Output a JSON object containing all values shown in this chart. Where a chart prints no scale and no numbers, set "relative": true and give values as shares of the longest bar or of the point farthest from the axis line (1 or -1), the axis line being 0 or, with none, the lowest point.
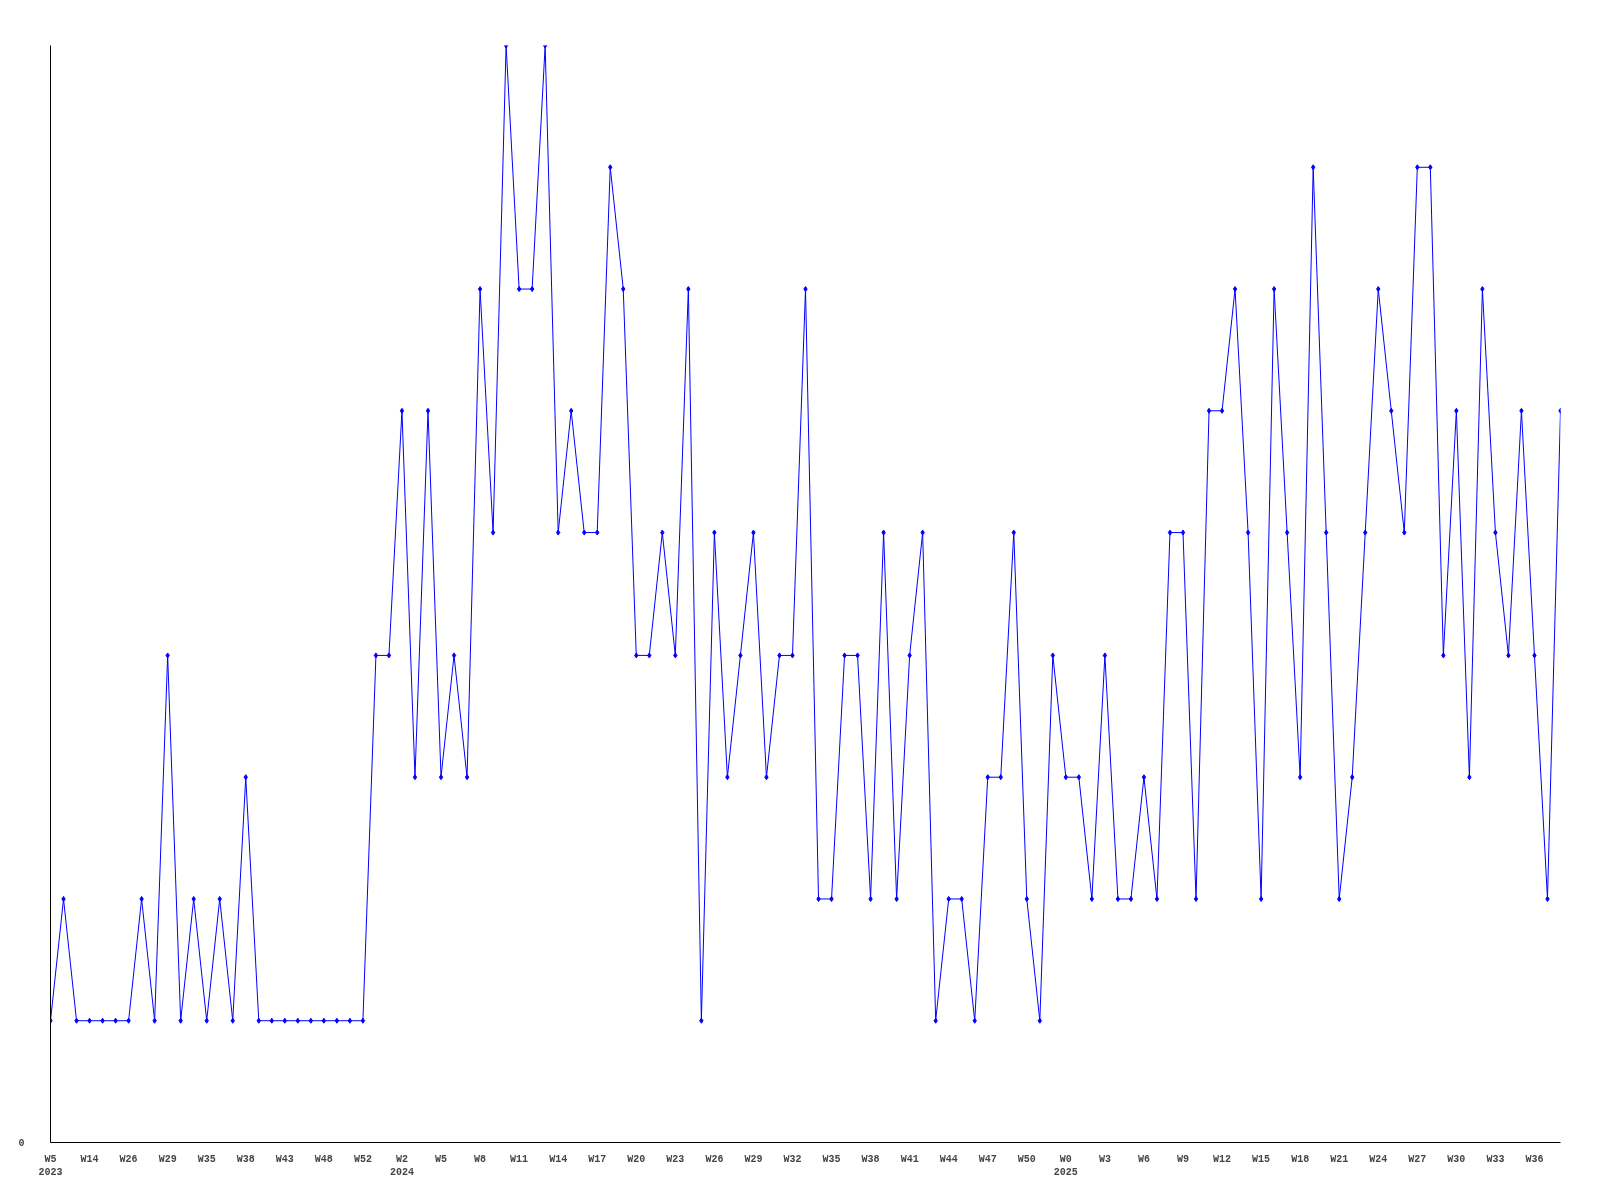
{
  "chart_data": {
    "type": "line",
    "relative": true,
    "color": "#0000ff",
    "marker": "diamond",
    "line_style": "solid",
    "grid": false,
    "annotations": [
      "0"
    ],
    "categories": [
      "W5\n2023",
      null,
      null,
      "W14",
      null,
      null,
      "W26",
      null,
      null,
      "W29",
      null,
      null,
      "W35",
      null,
      null,
      "W38",
      null,
      null,
      "W43",
      null,
      null,
      "W48",
      null,
      null,
      "W52",
      null,
      null,
      "W2\n2024",
      null,
      null,
      "W5",
      null,
      null,
      "W8",
      null,
      null,
      "W11",
      null,
      null,
      "W14",
      null,
      null,
      "W17",
      null,
      null,
      "W20",
      null,
      null,
      "W23",
      null,
      null,
      "W26",
      null,
      null,
      "W29",
      null,
      null,
      "W32",
      null,
      null,
      "W35",
      null,
      null,
      "W38",
      null,
      null,
      "W41",
      null,
      null,
      "W44",
      null,
      null,
      "W47",
      null,
      null,
      "W50",
      null,
      null,
      "W0\n2025",
      null,
      null,
      "W3",
      null,
      null,
      "W6",
      null,
      null,
      "W9",
      null,
      null,
      "W12",
      null,
      null,
      "W15",
      null,
      null,
      "W18",
      null,
      null,
      "W21",
      null,
      null,
      "W24",
      null,
      null,
      "W27",
      null,
      null,
      "W30",
      null,
      null,
      "W33",
      null,
      null,
      "W36",
      null,
      null
    ],
    "values": [
      0.111,
      0.222,
      0.111,
      0.111,
      0.111,
      0.111,
      0.111,
      0.222,
      0.111,
      0.444,
      0.111,
      0.222,
      0.111,
      0.222,
      0.111,
      0.333,
      0.111,
      0.111,
      0.111,
      0.111,
      0.111,
      0.111,
      0.111,
      0.111,
      0.111,
      0.444,
      0.444,
      0.667,
      0.333,
      0.667,
      0.333,
      0.444,
      0.333,
      0.778,
      0.556,
      1,
      0.778,
      0.778,
      1,
      0.556,
      0.667,
      0.556,
      0.556,
      0.889,
      0.778,
      0.444,
      0.444,
      0.556,
      0.444,
      0.778,
      0.111,
      0.556,
      0.333,
      0.444,
      0.556,
      0.333,
      0.444,
      0.444,
      0.778,
      0.222,
      0.222,
      0.444,
      0.444,
      0.222,
      0.556,
      0.222,
      0.444,
      0.556,
      0.111,
      0.222,
      0.222,
      0.111,
      0.333,
      0.333,
      0.556,
      0.222,
      0.111,
      0.444,
      0.333,
      0.333,
      0.222,
      0.444,
      0.222,
      0.222,
      0.333,
      0.222,
      0.556,
      0.556,
      0.222,
      0.667,
      0.667,
      0.778,
      0.556,
      0.222,
      0.778,
      0.556,
      0.333,
      0.889,
      0.556,
      0.222,
      0.333,
      0.556,
      0.778,
      0.667,
      0.556,
      0.889,
      0.889,
      0.444,
      0.667,
      0.333,
      0.778,
      0.556,
      0.444,
      0.667,
      0.444,
      0.222,
      0.667
    ]
  }
}
